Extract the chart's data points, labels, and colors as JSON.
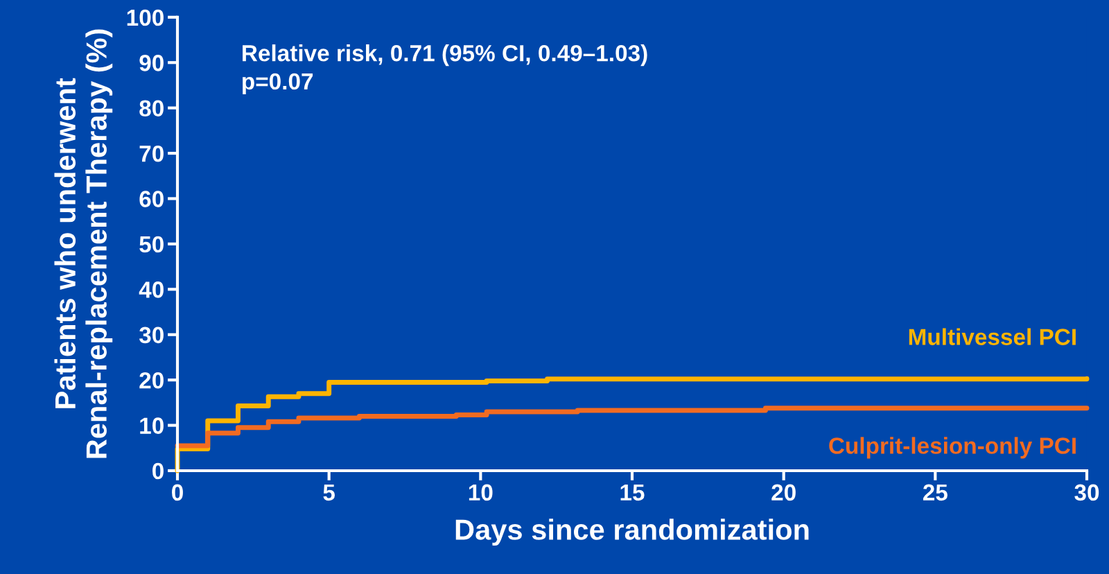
{
  "chart_data": {
    "type": "step",
    "xlabel": "Days since randomization",
    "ylabel": "Patients who underwent\nRenal-replacement Therapy (%)",
    "annotations": [
      "Relative risk, 0.71 (95% CI, 0.49–1.03)",
      "p=0.07"
    ],
    "series": [
      {
        "name": "Multivessel PCI",
        "color": "#ffb400",
        "x": [
          0,
          0,
          1,
          2,
          3,
          4,
          5,
          10.2,
          12.2,
          30
        ],
        "values": [
          0,
          4.8,
          11,
          14.3,
          16.3,
          17,
          19.5,
          19.8,
          20.2,
          20.3
        ]
      },
      {
        "name": "Culprit-lesion-only PCI",
        "color": "#f26b21",
        "x": [
          0,
          1,
          2,
          3,
          4,
          6,
          9.2,
          10.2,
          13.2,
          19.4,
          30
        ],
        "values": [
          5.5,
          8.3,
          9.5,
          10.8,
          11.6,
          12,
          12.3,
          13,
          13.3,
          13.8,
          13.8
        ]
      }
    ],
    "xlim": [
      0,
      30
    ],
    "ylim": [
      0,
      100
    ],
    "xticks": [
      0,
      5,
      10,
      15,
      20,
      25,
      30
    ],
    "yticks": [
      0,
      10,
      20,
      30,
      40,
      50,
      60,
      70,
      80,
      90,
      100
    ],
    "grid": false,
    "legend": false
  }
}
